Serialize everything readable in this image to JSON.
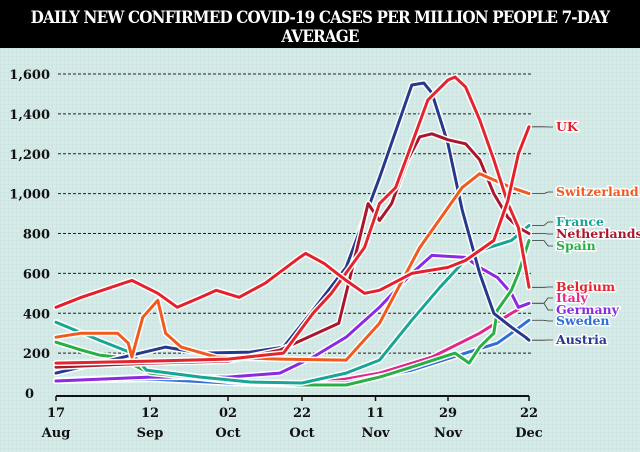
{
  "chart_data": {
    "type": "line",
    "title": "DAILY NEW CONFIRMED COVID-19 CASES PER MILLION PEOPLE 7-DAY AVERAGE",
    "xlabel": "",
    "ylabel": "",
    "ylim": [
      0,
      1600
    ],
    "y_ticks": [
      "0",
      "200",
      "400",
      "600",
      "800",
      "1,000",
      "1,200",
      "1,400",
      "1,600"
    ],
    "x_ticks": [
      {
        "day": "17",
        "month": "Aug",
        "date": "2020-08-17"
      },
      {
        "day": "12",
        "month": "Sep",
        "date": "2020-09-12"
      },
      {
        "day": "02",
        "month": "Oct",
        "date": "2020-10-02"
      },
      {
        "day": "22",
        "month": "Oct",
        "date": "2020-10-22"
      },
      {
        "day": "11",
        "month": "Nov",
        "date": "2020-11-11"
      },
      {
        "day": "29",
        "month": "Nov",
        "date": "2020-11-29"
      },
      {
        "day": "22",
        "month": "Dec",
        "date": "2020-12-22"
      }
    ],
    "grid": true,
    "legend": "right-end labels",
    "series": [
      {
        "name": "UK",
        "color": "#e5202a",
        "points": [
          [
            "2020-08-17",
            430
          ],
          [
            "2020-08-24",
            480
          ],
          [
            "2020-09-07",
            565
          ],
          [
            "2020-09-14",
            500
          ],
          [
            "2020-09-19",
            430
          ],
          [
            "2020-09-25",
            480
          ],
          [
            "2020-09-29",
            515
          ],
          [
            "2020-10-05",
            480
          ],
          [
            "2020-10-12",
            550
          ],
          [
            "2020-10-21",
            675
          ],
          [
            "2020-10-23",
            700
          ],
          [
            "2020-10-28",
            650
          ],
          [
            "2020-11-03",
            565
          ],
          [
            "2020-11-08",
            500
          ],
          [
            "2020-11-12",
            515
          ],
          [
            "2020-11-20",
            600
          ],
          [
            "2020-11-29",
            630
          ],
          [
            "2020-12-04",
            665
          ],
          [
            "2020-12-12",
            765
          ],
          [
            "2020-12-16",
            965
          ],
          [
            "2020-12-19",
            1200
          ],
          [
            "2020-12-22",
            1335
          ]
        ]
      },
      {
        "name": "Switzerland",
        "color": "#f05a1e",
        "points": [
          [
            "2020-08-17",
            280
          ],
          [
            "2020-08-24",
            300
          ],
          [
            "2020-09-03",
            300
          ],
          [
            "2020-09-06",
            250
          ],
          [
            "2020-09-07",
            180
          ],
          [
            "2020-09-10",
            380
          ],
          [
            "2020-09-14",
            465
          ],
          [
            "2020-09-16",
            300
          ],
          [
            "2020-09-20",
            230
          ],
          [
            "2020-09-29",
            180
          ],
          [
            "2020-10-16",
            170
          ],
          [
            "2020-11-03",
            165
          ],
          [
            "2020-11-12",
            350
          ],
          [
            "2020-11-22",
            730
          ],
          [
            "2020-11-29",
            930
          ],
          [
            "2020-12-03",
            1030
          ],
          [
            "2020-12-08",
            1100
          ],
          [
            "2020-12-17",
            1030
          ],
          [
            "2020-12-22",
            1000
          ]
        ]
      },
      {
        "name": "France",
        "color": "#17a596",
        "points": [
          [
            "2020-08-17",
            355
          ],
          [
            "2020-08-29",
            265
          ],
          [
            "2020-09-07",
            200
          ],
          [
            "2020-09-11",
            115
          ],
          [
            "2020-09-25",
            80
          ],
          [
            "2020-10-08",
            55
          ],
          [
            "2020-10-22",
            50
          ],
          [
            "2020-11-03",
            100
          ],
          [
            "2020-11-12",
            165
          ],
          [
            "2020-11-20",
            365
          ],
          [
            "2020-11-27",
            530
          ],
          [
            "2020-12-03",
            650
          ],
          [
            "2020-12-08",
            715
          ],
          [
            "2020-12-17",
            765
          ],
          [
            "2020-12-22",
            840
          ]
        ]
      },
      {
        "name": "Netherlands",
        "color": "#a8172c",
        "points": [
          [
            "2020-08-17",
            130
          ],
          [
            "2020-09-12",
            150
          ],
          [
            "2020-10-02",
            160
          ],
          [
            "2020-10-16",
            215
          ],
          [
            "2020-11-01",
            350
          ],
          [
            "2020-11-09",
            950
          ],
          [
            "2020-11-12",
            865
          ],
          [
            "2020-11-15",
            950
          ],
          [
            "2020-11-19",
            1170
          ],
          [
            "2020-11-22",
            1285
          ],
          [
            "2020-11-25",
            1300
          ],
          [
            "2020-11-29",
            1270
          ],
          [
            "2020-12-04",
            1250
          ],
          [
            "2020-12-08",
            1170
          ],
          [
            "2020-12-12",
            1000
          ],
          [
            "2020-12-16",
            880
          ],
          [
            "2020-12-19",
            830
          ],
          [
            "2020-12-22",
            800
          ]
        ]
      },
      {
        "name": "Spain",
        "color": "#27b043",
        "points": [
          [
            "2020-08-17",
            255
          ],
          [
            "2020-08-24",
            215
          ],
          [
            "2020-08-29",
            190
          ],
          [
            "2020-09-03",
            180
          ],
          [
            "2020-09-12",
            100
          ],
          [
            "2020-10-02",
            60
          ],
          [
            "2020-10-22",
            40
          ],
          [
            "2020-11-03",
            40
          ],
          [
            "2020-11-12",
            80
          ],
          [
            "2020-11-20",
            130
          ],
          [
            "2020-12-01",
            200
          ],
          [
            "2020-12-05",
            150
          ],
          [
            "2020-12-08",
            230
          ],
          [
            "2020-12-12",
            300
          ],
          [
            "2020-12-13",
            415
          ],
          [
            "2020-12-17",
            515
          ],
          [
            "2020-12-19",
            600
          ],
          [
            "2020-12-22",
            765
          ]
        ]
      },
      {
        "name": "Belgium",
        "color": "#e3262e",
        "points": [
          [
            "2020-08-17",
            150
          ],
          [
            "2020-09-12",
            160
          ],
          [
            "2020-10-02",
            170
          ],
          [
            "2020-10-17",
            200
          ],
          [
            "2020-10-25",
            400
          ],
          [
            "2020-10-30",
            500
          ],
          [
            "2020-11-08",
            730
          ],
          [
            "2020-11-12",
            950
          ],
          [
            "2020-11-16",
            1030
          ],
          [
            "2020-11-20",
            1250
          ],
          [
            "2020-11-24",
            1470
          ],
          [
            "2020-11-29",
            1570
          ],
          [
            "2020-12-01",
            1585
          ],
          [
            "2020-12-04",
            1535
          ],
          [
            "2020-12-08",
            1370
          ],
          [
            "2020-12-12",
            1170
          ],
          [
            "2020-12-16",
            950
          ],
          [
            "2020-12-19",
            830
          ],
          [
            "2020-12-22",
            530
          ]
        ]
      },
      {
        "name": "Italy",
        "color": "#e0288c",
        "points": [
          [
            "2020-08-17",
            65
          ],
          [
            "2020-09-12",
            80
          ],
          [
            "2020-10-02",
            50
          ],
          [
            "2020-10-22",
            40
          ],
          [
            "2020-11-03",
            70
          ],
          [
            "2020-11-12",
            100
          ],
          [
            "2020-11-25",
            180
          ],
          [
            "2020-12-08",
            300
          ],
          [
            "2020-12-17",
            400
          ],
          [
            "2020-12-22",
            450
          ]
        ]
      },
      {
        "name": "Germany",
        "color": "#8a2be2",
        "points": [
          [
            "2020-08-17",
            60
          ],
          [
            "2020-09-12",
            80
          ],
          [
            "2020-10-02",
            80
          ],
          [
            "2020-10-16",
            100
          ],
          [
            "2020-10-25",
            180
          ],
          [
            "2020-11-03",
            280
          ],
          [
            "2020-11-12",
            430
          ],
          [
            "2020-11-20",
            600
          ],
          [
            "2020-11-25",
            690
          ],
          [
            "2020-12-04",
            680
          ],
          [
            "2020-12-08",
            630
          ],
          [
            "2020-12-13",
            580
          ],
          [
            "2020-12-17",
            500
          ],
          [
            "2020-12-19",
            430
          ],
          [
            "2020-12-22",
            450
          ]
        ]
      },
      {
        "name": "Sweden",
        "color": "#2f6fd6",
        "points": [
          [
            "2020-08-17",
            60
          ],
          [
            "2020-09-12",
            70
          ],
          [
            "2020-10-02",
            50
          ],
          [
            "2020-10-22",
            45
          ],
          [
            "2020-11-03",
            50
          ],
          [
            "2020-11-20",
            115
          ],
          [
            "2020-12-04",
            200
          ],
          [
            "2020-12-13",
            250
          ],
          [
            "2020-12-17",
            300
          ],
          [
            "2020-12-22",
            365
          ]
        ]
      },
      {
        "name": "Austria",
        "color": "#253a8c",
        "points": [
          [
            "2020-08-17",
            100
          ],
          [
            "2020-09-16",
            230
          ],
          [
            "2020-09-25",
            200
          ],
          [
            "2020-10-08",
            205
          ],
          [
            "2020-10-17",
            230
          ],
          [
            "2020-10-25",
            415
          ],
          [
            "2020-11-03",
            630
          ],
          [
            "2020-11-12",
            1080
          ],
          [
            "2020-11-20",
            1545
          ],
          [
            "2020-11-23",
            1555
          ],
          [
            "2020-11-25",
            1505
          ],
          [
            "2020-11-29",
            1250
          ],
          [
            "2020-12-03",
            920
          ],
          [
            "2020-12-08",
            600
          ],
          [
            "2020-12-12",
            400
          ],
          [
            "2020-12-17",
            330
          ],
          [
            "2020-12-21",
            280
          ],
          [
            "2020-12-22",
            265
          ]
        ]
      }
    ]
  }
}
